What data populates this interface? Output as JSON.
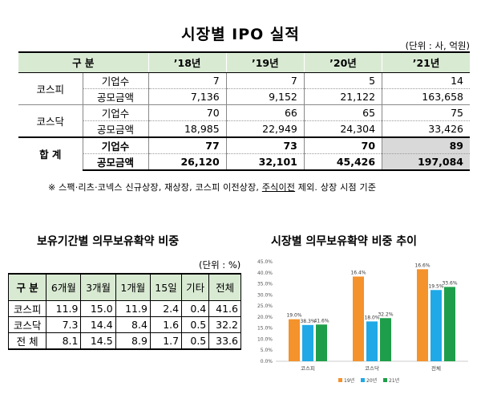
{
  "ipo": {
    "title": "시장별 IPO 실적",
    "unit": "(단위 : 사, 억원)",
    "headers": [
      "구 분",
      "’18년",
      "’19년",
      "’20년",
      "’21년"
    ],
    "kospi_label": "코스피",
    "kosdaq_label": "코스닥",
    "total_label": "합 계",
    "count_label": "기업수",
    "amount_label": "공모금액",
    "kospi_count": [
      "7",
      "7",
      "5",
      "14"
    ],
    "kospi_amount": [
      "7,136",
      "9,152",
      "21,122",
      "163,658"
    ],
    "kosdaq_count": [
      "70",
      "66",
      "65",
      "75"
    ],
    "kosdaq_amount": [
      "18,985",
      "22,949",
      "24,304",
      "33,426"
    ],
    "total_count": [
      "77",
      "73",
      "70",
      "89"
    ],
    "total_amount": [
      "26,120",
      "32,101",
      "45,426",
      "197,084"
    ],
    "note_a": "※ 스팩·리츠·코넥스 신규상장, 재상장, 코스피 이전상장, ",
    "note_b": "주식이전",
    "note_c": " 제외. 상장 시점 기준"
  },
  "holding": {
    "title": "보유기간별 의무보유확약 비중",
    "unit": "(단위 : %)",
    "headers": [
      "구 분",
      "6개월",
      "3개월",
      "1개월",
      "15일",
      "기타",
      "전체"
    ],
    "rows": [
      {
        "label": "코스피",
        "values": [
          "11.9",
          "15.0",
          "11.9",
          "2.4",
          "0.4",
          "41.6"
        ]
      },
      {
        "label": "코스닥",
        "values": [
          "7.3",
          "14.4",
          "8.4",
          "1.6",
          "0.5",
          "32.2"
        ]
      },
      {
        "label": "전 체",
        "values": [
          "8.1",
          "14.5",
          "8.9",
          "1.7",
          "0.5",
          "33.6"
        ]
      }
    ]
  },
  "chart_title": "시장별 의무보유확약 비중 추이",
  "chart_data": {
    "type": "bar",
    "categories": [
      "코스피",
      "코스닥",
      "전체"
    ],
    "series": [
      {
        "name": "19년",
        "values": [
          19.0,
          38.3,
          41.6
        ],
        "color": "#f4922b"
      },
      {
        "name": "20년",
        "values": [
          16.4,
          18.0,
          32.2
        ],
        "color": "#1fa9e6"
      },
      {
        "name": "21년",
        "values": [
          16.6,
          19.5,
          33.6
        ],
        "color": "#1e9e4a"
      }
    ],
    "ylim": [
      0,
      45
    ],
    "yticks": [
      "0.0%",
      "5.0%",
      "10.0%",
      "15.0%",
      "20.0%",
      "25.0%",
      "30.0%",
      "35.0%",
      "40.0%",
      "45.0%"
    ],
    "data_labels": [
      [
        "19.0%",
        "38.3%",
        "41.6%"
      ],
      [
        "16.4%",
        "18.0%",
        "32.2%"
      ],
      [
        "16.6%",
        "19.5%",
        "33.6%"
      ]
    ],
    "legend_position": "bottom",
    "grid": false
  }
}
